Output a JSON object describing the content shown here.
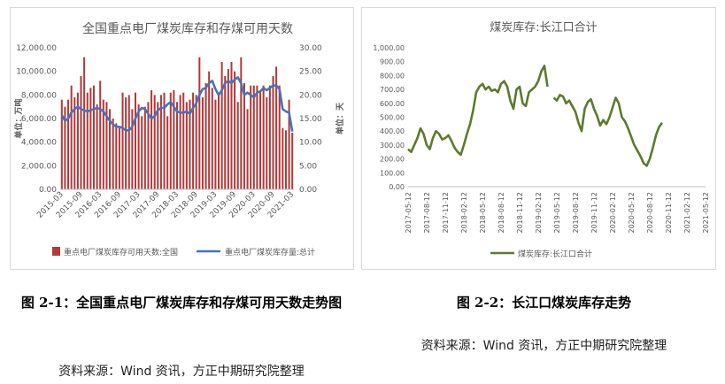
{
  "chart_data": [
    {
      "type": "bar+line",
      "title": "全国重点电厂煤炭库存和存煤可用天数",
      "ylabel": "单位：万吨",
      "y2label": "单位：天",
      "ylim": [
        0,
        12000
      ],
      "y_ticks": [
        "0.00",
        "2,000.00",
        "4,000.00",
        "6,000.00",
        "8,000.00",
        "10,000.00",
        "12,000.00"
      ],
      "y2lim": [
        0,
        30
      ],
      "y2_ticks": [
        "0.00",
        "5.00",
        "10.00",
        "15.00",
        "20.00",
        "25.00",
        "30.00"
      ],
      "x_ticks": [
        "2015-03",
        "2015-09",
        "2016-03",
        "2016-09",
        "2017-03",
        "2017-09",
        "2018-03",
        "2018-09",
        "2019-03",
        "2019-09",
        "2020-03",
        "2020-09",
        "2021-03"
      ],
      "colors": {
        "bar": "#b23a3a",
        "line": "#4a72b8"
      },
      "legend": {
        "placement": "bottom"
      },
      "series": [
        {
          "name": "重点电厂煤炭库存可用天数:全国",
          "kind": "bar",
          "axis": "right",
          "values": [
            19,
            17.5,
            19,
            22,
            19.5,
            20.5,
            24,
            28,
            20.5,
            21.5,
            22,
            18,
            23,
            19,
            18.5,
            17,
            15,
            14,
            13,
            20.5,
            19.5,
            20,
            17,
            20.5,
            18,
            15.5,
            17.5,
            18.5,
            21,
            20,
            18.5,
            20,
            20.5,
            15.5,
            20.5,
            21,
            18.5,
            20,
            20.5,
            18.5,
            19,
            20.5,
            20,
            28,
            19.5,
            22.5,
            25,
            21.5,
            19,
            20.5,
            27,
            24,
            25.5,
            27,
            25,
            18.5,
            28,
            22.5,
            17,
            22,
            22,
            22,
            21,
            22,
            19.5,
            22,
            24,
            26,
            22,
            13,
            12.5,
            19,
            12
          ]
        },
        {
          "name": "重点电厂煤炭库存量:总计",
          "kind": "line",
          "axis": "left",
          "values": [
            6300,
            5800,
            6000,
            6500,
            6800,
            7000,
            6800,
            6700,
            6600,
            6700,
            6800,
            6900,
            6800,
            6600,
            6200,
            5800,
            5500,
            5300,
            5300,
            5200,
            5000,
            5000,
            5300,
            6000,
            6600,
            6900,
            6800,
            6400,
            6000,
            6200,
            6700,
            6900,
            6900,
            7200,
            7400,
            7000,
            6600,
            6500,
            6500,
            6600,
            6400,
            6900,
            7300,
            8000,
            8500,
            8600,
            9000,
            9200,
            8500,
            8000,
            8400,
            9000,
            9200,
            9000,
            9300,
            9500,
            9000,
            8000,
            8200,
            8000,
            7800,
            8200,
            8300,
            8600,
            8400,
            8600,
            8800,
            8800,
            8500,
            6800,
            6600,
            6500,
            4900
          ]
        }
      ]
    },
    {
      "type": "line",
      "title": "煤炭库存:长江口合计",
      "ylim": [
        0,
        1000
      ],
      "y_ticks": [
        "0.00",
        "100.00",
        "200.00",
        "300.00",
        "400.00",
        "500.00",
        "600.00",
        "700.00",
        "800.00",
        "900.00",
        "1,000.00"
      ],
      "x_ticks": [
        "2017-05-12",
        "2017-08-12",
        "2017-11-12",
        "2018-02-12",
        "2018-05-12",
        "2018-08-12",
        "2018-11-12",
        "2019-02-12",
        "2019-05-12",
        "2019-08-12",
        "2019-11-12",
        "2020-02-12",
        "2020-05-12",
        "2020-08-12",
        "2020-11-12",
        "2021-02-12",
        "2021-05-12"
      ],
      "colors": {
        "line": "#5d7a2e"
      },
      "legend": {
        "placement": "bottom"
      },
      "series": [
        {
          "name": "煤炭库存:长江口合计",
          "x": [
            0,
            0.5,
            1,
            1.5,
            2,
            2.5,
            3,
            3.5,
            4,
            4.5,
            5,
            5.5,
            6,
            6.5,
            7,
            7.5,
            8,
            8.5,
            9,
            9.5,
            10,
            10.5,
            11,
            11.5,
            12,
            12.5,
            13,
            13.5,
            14,
            14.5,
            15,
            15.5,
            16,
            16.5,
            17,
            17.5,
            18,
            18.5,
            19,
            19.5,
            20,
            20.5,
            21,
            21.5,
            22,
            22.5,
            23,
            23.5,
            24,
            24.5,
            25,
            25.5,
            26,
            26.5,
            27,
            27.5,
            28,
            28.5,
            29,
            29.5,
            30,
            30.5,
            31,
            31.5,
            32,
            32.5,
            33,
            33.5,
            34,
            34.5,
            35,
            35.5,
            36,
            36.5,
            37,
            37.5,
            38,
            38.5,
            39,
            39.5,
            40,
            40.5,
            41,
            41.5,
            42,
            42.5,
            43,
            43.5,
            44,
            44.5,
            45,
            45.5,
            46,
            46.5,
            47,
            47.5,
            48
          ],
          "values": [
            270,
            250,
            300,
            350,
            420,
            380,
            300,
            270,
            350,
            400,
            380,
            340,
            350,
            370,
            330,
            280,
            250,
            230,
            300,
            380,
            450,
            550,
            680,
            720,
            740,
            700,
            720,
            690,
            700,
            680,
            740,
            760,
            720,
            620,
            560,
            700,
            720,
            600,
            580,
            680,
            700,
            720,
            760,
            830,
            870,
            720,
            null,
            640,
            620,
            660,
            650,
            600,
            620,
            580,
            540,
            460,
            400,
            560,
            610,
            630,
            560,
            510,
            440,
            480,
            450,
            500,
            570,
            640,
            600,
            500,
            470,
            420,
            360,
            300,
            260,
            220,
            170,
            150,
            200,
            280,
            370,
            430,
            460,
            null,
            null,
            null,
            null,
            null,
            null,
            null,
            null,
            null,
            null,
            null,
            null,
            null,
            null
          ]
        }
      ]
    }
  ],
  "captions": {
    "fig1": "图 2-1：全国重点电厂煤炭库存和存煤可用天数走势图",
    "fig2": "图 2-2：长江口煤炭库存走势"
  },
  "sources": {
    "fig1": "资料来源：Wind 资讯，方正中期研究院整理",
    "fig2": "资料来源：Wind 资讯，方正中期研究院整理"
  }
}
